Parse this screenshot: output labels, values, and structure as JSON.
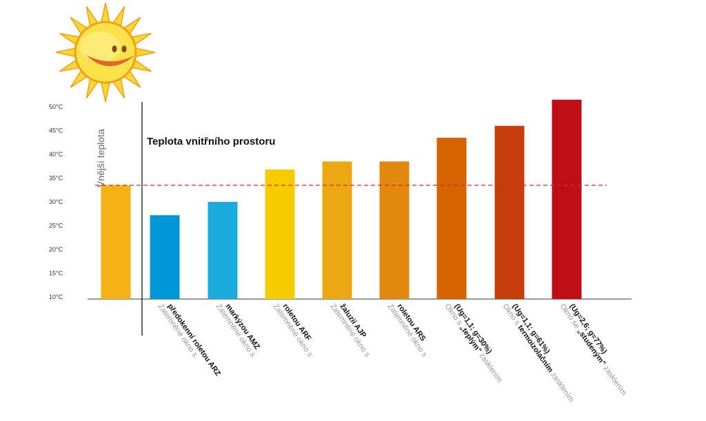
{
  "chart_data": {
    "type": "bar",
    "title": "Teplota vnitřního prostoru",
    "outside_label": "Vnější teplota",
    "yticks": [
      "50°C",
      "45°C",
      "40°C",
      "35°C",
      "30°C",
      "25°C",
      "20°C",
      "15°C",
      "10°C"
    ],
    "ylim": [
      10,
      50
    ],
    "reference_line": 33.5,
    "bars": [
      {
        "value": 33.5,
        "color": "#f5b215",
        "lines": []
      },
      {
        "value": 27.2,
        "color": "#0097d6",
        "lines": [
          {
            "grey": "Zatemněné okno s",
            "black": ""
          },
          {
            "grey": "",
            "black": "předokenní roletou ARZ"
          }
        ]
      },
      {
        "value": 30.0,
        "color": "#1aabdf",
        "lines": [
          {
            "grey": "Zatemněné okno s",
            "black": ""
          },
          {
            "grey": "",
            "black": "markýzou AMZ"
          }
        ]
      },
      {
        "value": 36.8,
        "color": "#f6cb00",
        "lines": [
          {
            "grey": "Zatemněné okno s",
            "black": ""
          },
          {
            "grey": "",
            "black": "roletou ARF"
          }
        ]
      },
      {
        "value": 38.5,
        "color": "#eba812",
        "lines": [
          {
            "grey": "Zatemněné okno s",
            "black": ""
          },
          {
            "grey": "",
            "black": "žaluzií AJP"
          }
        ]
      },
      {
        "value": 38.5,
        "color": "#e2880e",
        "lines": [
          {
            "grey": "Zatemněné okno s",
            "black": ""
          },
          {
            "grey": "",
            "black": "roletou ARS"
          }
        ]
      },
      {
        "value": 43.5,
        "color": "#d46300",
        "lines": [
          {
            "grey": "Okno s ",
            "black": "„teplým\" ",
            "grey2": "zasklením"
          },
          {
            "grey": "",
            "black": "(Ug=1,1; g=30%)"
          }
        ]
      },
      {
        "value": 46.0,
        "color": "#c63d0c",
        "lines": [
          {
            "grey": "Okno s ",
            "black": "termoizolačním ",
            "grey2": "zasklením"
          },
          {
            "grey": "",
            "black": "(Ug=1,1; g=61%)"
          }
        ]
      },
      {
        "value": 51.5,
        "color": "#c00e16",
        "lines": [
          {
            "grey": "Okno se ",
            "black": "„studeným\" ",
            "grey2": "zasklením"
          },
          {
            "grey": "",
            "black": "(Ug=2,6; g=77%)"
          }
        ]
      }
    ]
  }
}
